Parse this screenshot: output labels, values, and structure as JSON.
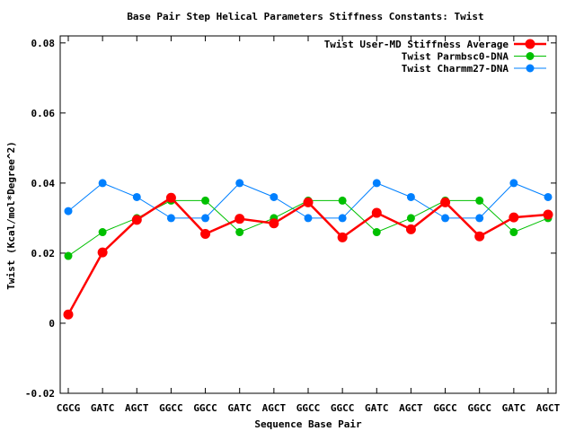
{
  "chart_data": {
    "type": "line",
    "title": "Base Pair Step Helical Parameters Stiffness Constants: Twist",
    "xlabel": "Sequence Base Pair",
    "ylabel": "Twist (Kcal/mol*Degree^2)",
    "categories": [
      "CGCG",
      "GATC",
      "AGCT",
      "GGCC",
      "GGCC",
      "GATC",
      "AGCT",
      "GGCC",
      "GGCC",
      "GATC",
      "AGCT",
      "GGCC",
      "GGCC",
      "GATC",
      "AGCT"
    ],
    "ylim": [
      -0.02,
      0.082
    ],
    "yticks": [
      -0.02,
      0,
      0.02,
      0.04,
      0.06,
      0.08
    ],
    "ytick_labels": [
      "-0.02",
      "0",
      "0.02",
      "0.04",
      "0.06",
      "0.08"
    ],
    "legend_position": "top-right",
    "grid": false,
    "series": [
      {
        "name": "Twist User-MD Stiffness Average",
        "color": "#ff0000",
        "values": [
          0.0025,
          0.0202,
          0.0295,
          0.0358,
          0.0255,
          0.0298,
          0.0285,
          0.0345,
          0.0245,
          0.0315,
          0.0268,
          0.0345,
          0.0248,
          0.0302,
          0.031
        ]
      },
      {
        "name": "Twist Parmbsc0-DNA",
        "color": "#00c000",
        "values": [
          0.0192,
          0.026,
          0.03,
          0.035,
          0.035,
          0.026,
          0.03,
          0.035,
          0.035,
          0.026,
          0.03,
          0.035,
          0.035,
          0.026,
          0.03
        ]
      },
      {
        "name": "Twist Charmm27-DNA",
        "color": "#0080ff",
        "values": [
          0.032,
          0.04,
          0.036,
          0.03,
          0.03,
          0.04,
          0.036,
          0.03,
          0.03,
          0.04,
          0.036,
          0.03,
          0.03,
          0.04,
          0.036
        ]
      }
    ]
  }
}
